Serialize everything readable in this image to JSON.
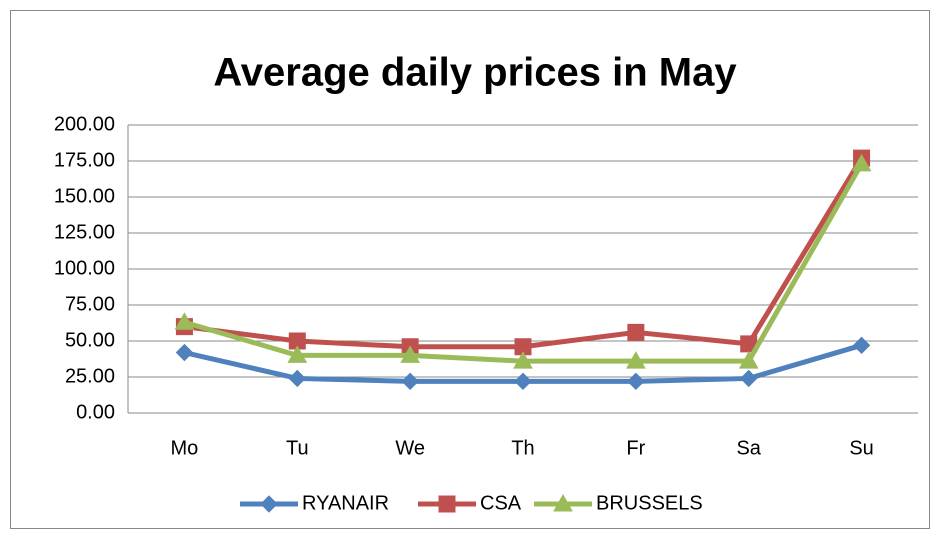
{
  "chart_data": {
    "type": "line",
    "title": "Average daily prices in May",
    "categories": [
      "Mo",
      "Tu",
      "We",
      "Th",
      "Fr",
      "Sa",
      "Su"
    ],
    "series": [
      {
        "name": "RYANAIR",
        "color": "#4f81bd",
        "marker": "diamond",
        "values": [
          42,
          24,
          22,
          22,
          22,
          24,
          47
        ]
      },
      {
        "name": "CSA",
        "color": "#c0504d",
        "marker": "square",
        "values": [
          60,
          50,
          46,
          46,
          56,
          48,
          177
        ]
      },
      {
        "name": "BRUSSELS",
        "color": "#9bbb59",
        "marker": "triangle",
        "values": [
          63,
          40,
          40,
          36,
          36,
          36,
          173
        ]
      }
    ],
    "ylim": [
      0,
      200
    ],
    "yticks": [
      {
        "value": 0,
        "label": "0.00"
      },
      {
        "value": 25,
        "label": "25.00"
      },
      {
        "value": 50,
        "label": "50.00"
      },
      {
        "value": 75,
        "label": "75.00"
      },
      {
        "value": 100,
        "label": "100.00"
      },
      {
        "value": 125,
        "label": "125.00"
      },
      {
        "value": 150,
        "label": "150.00"
      },
      {
        "value": 175,
        "label": "175.00"
      },
      {
        "value": 200,
        "label": "200.00"
      }
    ],
    "grid": true,
    "legend": "bottom"
  }
}
